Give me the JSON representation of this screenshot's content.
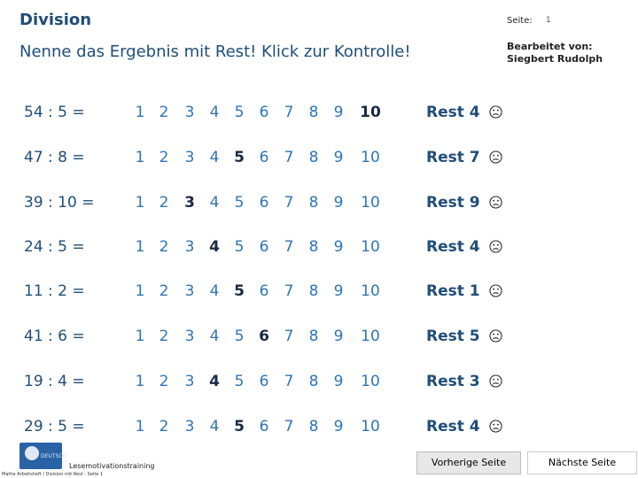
{
  "header": {
    "title": "Division",
    "seite_label": "Seite:",
    "seite_value": "1",
    "subtitle": "Nenne das Ergebnis mit Rest! Klick zur Kontrolle!",
    "author_line1": "Bearbeitet von:",
    "author_line2": "Siegbert Rudolph"
  },
  "options": [
    "1",
    "2",
    "3",
    "4",
    "5",
    "6",
    "7",
    "8",
    "9",
    "10"
  ],
  "problems": [
    {
      "expr": "54 : 5 =",
      "answer": "10",
      "rest": "Rest 4"
    },
    {
      "expr": "47 : 8 =",
      "answer": "5",
      "rest": "Rest 7"
    },
    {
      "expr": "39 : 10 =",
      "answer": "3",
      "rest": "Rest 9"
    },
    {
      "expr": "24 : 5 =",
      "answer": "4",
      "rest": "Rest 4"
    },
    {
      "expr": "11 : 2 =",
      "answer": "5",
      "rest": "Rest 1"
    },
    {
      "expr": "41 : 6 =",
      "answer": "6",
      "rest": "Rest 5"
    },
    {
      "expr": "19 : 4 =",
      "answer": "4",
      "rest": "Rest 3"
    },
    {
      "expr": "29 : 5 =",
      "answer": "5",
      "rest": "Rest 4"
    }
  ],
  "footer": {
    "logo_text": "DEUTSCH",
    "training_label": "Lesemotivationstraining",
    "footnote": "Mathe Arbeitsheft / Division mit Rest - Seite 1",
    "prev_button": "Vorherige Seite",
    "next_button": "Nächste Seite"
  },
  "colors": {
    "title": "#1f4e79",
    "option": "#2e75b6",
    "correct": "#1a2a44"
  }
}
